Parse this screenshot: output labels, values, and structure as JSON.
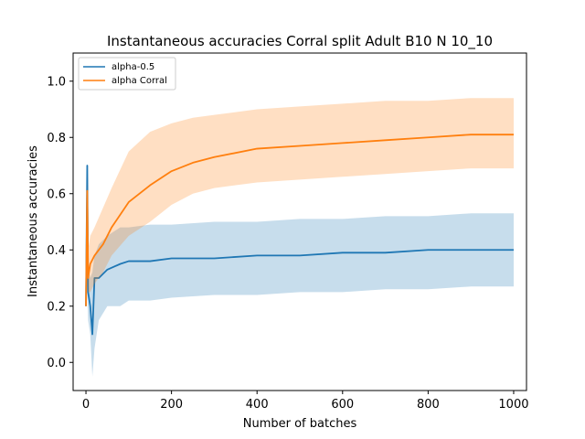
{
  "chart_data": {
    "type": "line",
    "title": "Instantaneous accuracies Corral split Adult B10 N 10_10",
    "xlabel": "Number of batches",
    "ylabel": "Instantaneous accuracies",
    "xlim": [
      -30,
      1030
    ],
    "ylim": [
      -0.1,
      1.1
    ],
    "xticks": [
      "0",
      "200",
      "400",
      "600",
      "800",
      "1000"
    ],
    "yticks": [
      "0.0",
      "0.2",
      "0.4",
      "0.6",
      "0.8",
      "1.0"
    ],
    "grid": false,
    "legend_position": "top-left",
    "series": [
      {
        "name": "alpha-0.5",
        "color": "#1f77b4",
        "band_color": "#1f77b4",
        "x": [
          0,
          3,
          5,
          10,
          15,
          20,
          30,
          50,
          80,
          100,
          150,
          200,
          300,
          400,
          500,
          600,
          700,
          800,
          900,
          1000
        ],
        "values": [
          0.2,
          0.7,
          0.25,
          0.2,
          0.1,
          0.3,
          0.3,
          0.33,
          0.35,
          0.36,
          0.36,
          0.37,
          0.37,
          0.38,
          0.38,
          0.39,
          0.39,
          0.4,
          0.4,
          0.4
        ],
        "band_lower": [
          0.2,
          0.25,
          0.15,
          0.1,
          -0.05,
          0.05,
          0.15,
          0.2,
          0.2,
          0.22,
          0.22,
          0.23,
          0.24,
          0.24,
          0.25,
          0.25,
          0.26,
          0.26,
          0.27,
          0.27
        ],
        "band_upper": [
          0.2,
          0.45,
          0.35,
          0.3,
          0.32,
          0.38,
          0.42,
          0.45,
          0.48,
          0.48,
          0.49,
          0.49,
          0.5,
          0.5,
          0.51,
          0.51,
          0.52,
          0.52,
          0.53,
          0.53
        ]
      },
      {
        "name": "alpha Corral",
        "color": "#ff7f0e",
        "band_color": "#ff7f0e",
        "x": [
          0,
          3,
          5,
          10,
          20,
          40,
          60,
          100,
          150,
          200,
          250,
          300,
          400,
          500,
          600,
          700,
          800,
          900,
          1000
        ],
        "values": [
          0.2,
          0.61,
          0.3,
          0.35,
          0.38,
          0.42,
          0.48,
          0.57,
          0.63,
          0.68,
          0.71,
          0.73,
          0.76,
          0.77,
          0.78,
          0.79,
          0.8,
          0.81,
          0.81
        ],
        "band_lower": [
          0.2,
          0.3,
          0.25,
          0.25,
          0.28,
          0.32,
          0.38,
          0.45,
          0.5,
          0.56,
          0.6,
          0.62,
          0.64,
          0.65,
          0.66,
          0.67,
          0.68,
          0.69,
          0.69
        ],
        "band_upper": [
          0.2,
          0.65,
          0.4,
          0.45,
          0.48,
          0.55,
          0.62,
          0.75,
          0.82,
          0.85,
          0.87,
          0.88,
          0.9,
          0.91,
          0.92,
          0.93,
          0.93,
          0.94,
          0.94
        ]
      }
    ]
  }
}
